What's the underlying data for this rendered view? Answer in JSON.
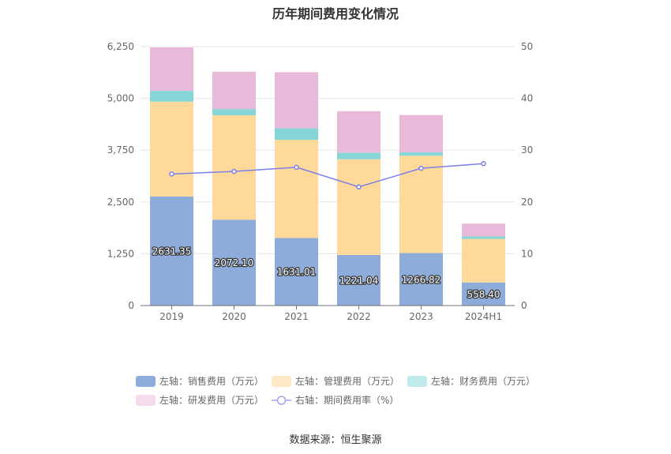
{
  "chart_data": {
    "type": "bar",
    "title": "历年期间费用变化情况",
    "categories": [
      "2019",
      "2020",
      "2021",
      "2022",
      "2023",
      "2024H1"
    ],
    "stacked": true,
    "left_axis": {
      "min": 0,
      "max": 6250,
      "ticks": [
        "0",
        "1,250",
        "2,500",
        "3,750",
        "5,000",
        "6,250"
      ],
      "tick_values": [
        0,
        1250,
        2500,
        3750,
        5000,
        6250
      ]
    },
    "right_axis": {
      "min": 0,
      "max": 50,
      "ticks": [
        "0",
        "10",
        "20",
        "30",
        "40",
        "50"
      ],
      "tick_values": [
        0,
        10,
        20,
        30,
        40,
        50
      ]
    },
    "series": [
      {
        "name": "左轴：销售费用（万元）",
        "kind": "bar",
        "axis": "left",
        "color": "#8eacd9",
        "values": [
          2631.35,
          2072.1,
          1631.01,
          1221.04,
          1266.82,
          558.4
        ],
        "labels": [
          "2631.35",
          "2072.10",
          "1631.01",
          "1221.04",
          "1266.82",
          "558.40"
        ]
      },
      {
        "name": "左轴：管理费用（万元）",
        "kind": "bar",
        "axis": "left",
        "color": "#ffd999",
        "legend_color": "#ffe8c4",
        "values": [
          2290,
          2520,
          2370,
          2310,
          2350,
          1050
        ]
      },
      {
        "name": "左轴：财务费用（万元）",
        "kind": "bar",
        "axis": "left",
        "color": "#86d5d8",
        "legend_color": "#bfeaec",
        "values": [
          260,
          150,
          280,
          160,
          80,
          60
        ]
      },
      {
        "name": "左轴：研发费用（万元）",
        "kind": "bar",
        "axis": "left",
        "color": "#e8b9d9",
        "legend_color": "#f5dcec",
        "values": [
          1050,
          900,
          1350,
          1000,
          900,
          310
        ]
      },
      {
        "name": "右轴：期间费用率（%）",
        "kind": "line",
        "axis": "right",
        "color": "#7b7fe8",
        "values": [
          25.4,
          25.9,
          26.7,
          22.9,
          26.5,
          27.4
        ]
      }
    ],
    "grid": true,
    "legend_position": "bottom"
  },
  "source": "数据来源：恒生聚源"
}
